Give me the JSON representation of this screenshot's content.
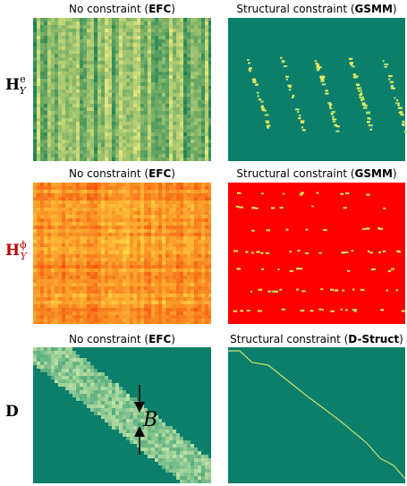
{
  "rows": [
    {
      "label": {
        "main": "H",
        "sub": "Y",
        "sup": "e"
      },
      "panels": [
        {
          "title": {
            "before": "No constraint (",
            "bold": "EFC",
            "after": ")"
          }
        },
        {
          "title": {
            "before": "Structural constraint (",
            "bold": "GSMM",
            "after": ")"
          }
        }
      ]
    },
    {
      "label": {
        "main": "H",
        "sub": "Y",
        "sup": "ϕ"
      },
      "panels": [
        {
          "title": {
            "before": "No constraint (",
            "bold": "EFC",
            "after": ")"
          }
        },
        {
          "title": {
            "before": "Structural constraint (",
            "bold": "GSMM",
            "after": ")"
          }
        }
      ]
    },
    {
      "label": {
        "main": "D"
      },
      "panels": [
        {
          "title": {
            "before": "No constraint (",
            "bold": "EFC",
            "after": ")"
          },
          "annotation": "B"
        },
        {
          "title": {
            "before": "Structural constraint (",
            "bold": "D-Struct",
            "after": ")"
          }
        }
      ]
    }
  ]
}
